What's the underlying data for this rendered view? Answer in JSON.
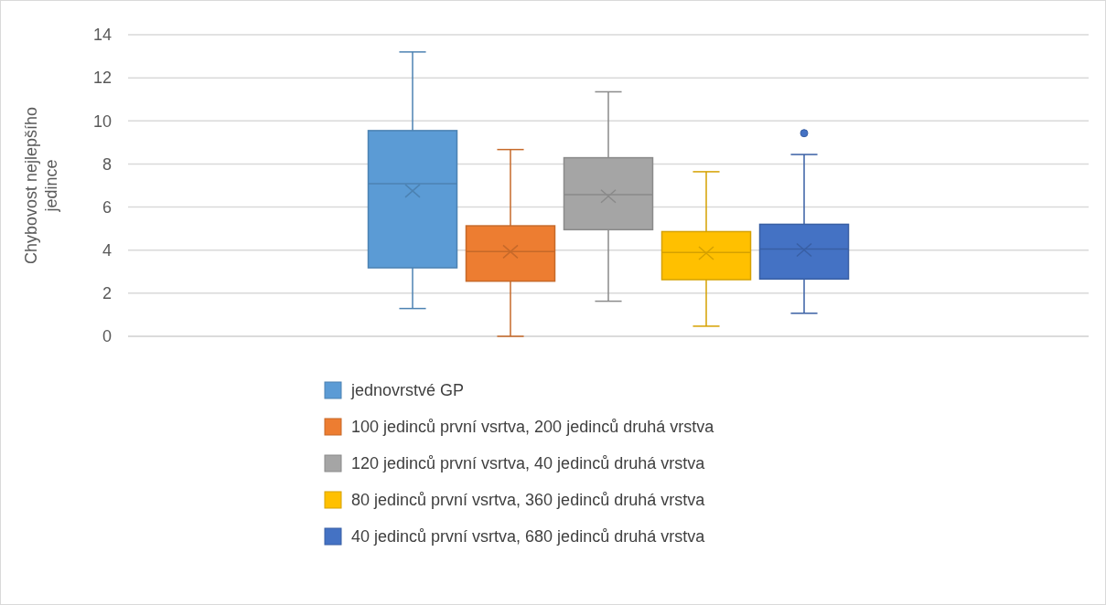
{
  "chart_data": {
    "type": "box",
    "ylabel": "Chybovost nejlepšího jedince",
    "categories": [
      null
    ],
    "ylim": [
      0,
      14
    ],
    "yticks": [
      0,
      2,
      4,
      6,
      8,
      10,
      12,
      14
    ],
    "grid": "y",
    "legend": "bottom",
    "series": [
      {
        "name": "jednovrstvé GP",
        "color": "#5b9bd5",
        "boxes": [
          {
            "low": 1.29,
            "q1": 3.18,
            "median": 7.08,
            "q3": 9.55,
            "high": 13.2,
            "mean": 6.75
          }
        ]
      },
      {
        "name": "100 jedinců první vsrtva, 200 jedinců druhá vrstva",
        "color": "#ed7d31",
        "boxes": [
          {
            "low": 0,
            "q1": 2.56,
            "median": 3.93,
            "q3": 5.13,
            "high": 8.67,
            "mean": 3.93
          }
        ]
      },
      {
        "name": "120 jedinců první vsrtva, 40 jedinců druhá vrstva",
        "color": "#a5a5a5",
        "boxes": [
          {
            "low": 1.63,
            "q1": 4.95,
            "median": 6.58,
            "q3": 8.29,
            "high": 11.35,
            "mean": 6.5
          }
        ]
      },
      {
        "name": "80 jedinců první vsrtva, 360 jedinců druhá vrstva",
        "color": "#ffc000",
        "boxes": [
          {
            "low": 0.47,
            "q1": 2.63,
            "median": 3.89,
            "q3": 4.86,
            "high": 7.64,
            "mean": 3.86
          }
        ]
      },
      {
        "name": "40 jedinců první vsrtva, 680 jedinců druhá vrstva",
        "color": "#4472c4",
        "boxes": [
          {
            "low": 1.07,
            "q1": 2.66,
            "median": 4.05,
            "q3": 5.2,
            "high": 8.44,
            "mean": 4.01,
            "outliers": [
              9.43
            ]
          }
        ]
      }
    ]
  }
}
